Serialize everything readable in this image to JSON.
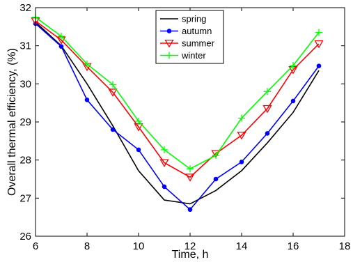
{
  "chart_data": {
    "type": "line",
    "title": "",
    "xlabel": "Time, h",
    "ylabel": "Overall thermal efficiency, (%)",
    "xlim": [
      6,
      18
    ],
    "ylim": [
      26,
      32
    ],
    "xticks": [
      6,
      8,
      10,
      12,
      14,
      16,
      18
    ],
    "yticks": [
      26,
      27,
      28,
      29,
      30,
      31,
      32
    ],
    "x_tick_labels": [
      "6",
      "8",
      "10",
      "12",
      "14",
      "16",
      "18"
    ],
    "y_tick_labels": [
      "26",
      "27",
      "28",
      "29",
      "30",
      "31",
      "32"
    ],
    "grid": false,
    "legend_position": "top-center",
    "x": [
      6,
      7,
      8,
      9,
      10,
      11,
      12,
      13,
      14,
      15,
      16,
      17
    ],
    "series": [
      {
        "name": "spring",
        "color": "#000000",
        "marker": "none",
        "values": [
          31.62,
          31.0,
          30.0,
          28.9,
          27.72,
          26.95,
          26.85,
          27.2,
          27.72,
          28.45,
          29.25,
          30.35
        ]
      },
      {
        "name": "autumn",
        "color": "#0000ff",
        "marker": "dot",
        "values": [
          31.58,
          30.98,
          29.58,
          28.8,
          28.27,
          27.3,
          26.7,
          27.5,
          27.95,
          28.7,
          29.55,
          30.47
        ]
      },
      {
        "name": "summer",
        "color": "#ff0000",
        "marker": "triangle-down",
        "values": [
          31.65,
          31.15,
          30.45,
          29.78,
          28.87,
          27.93,
          27.55,
          28.17,
          28.65,
          29.35,
          30.37,
          31.05
        ]
      },
      {
        "name": "winter",
        "color": "#00ff00",
        "marker": "plus",
        "values": [
          31.75,
          31.25,
          30.52,
          29.98,
          29.02,
          28.27,
          27.77,
          28.12,
          29.1,
          29.8,
          30.48,
          31.35
        ]
      }
    ]
  }
}
